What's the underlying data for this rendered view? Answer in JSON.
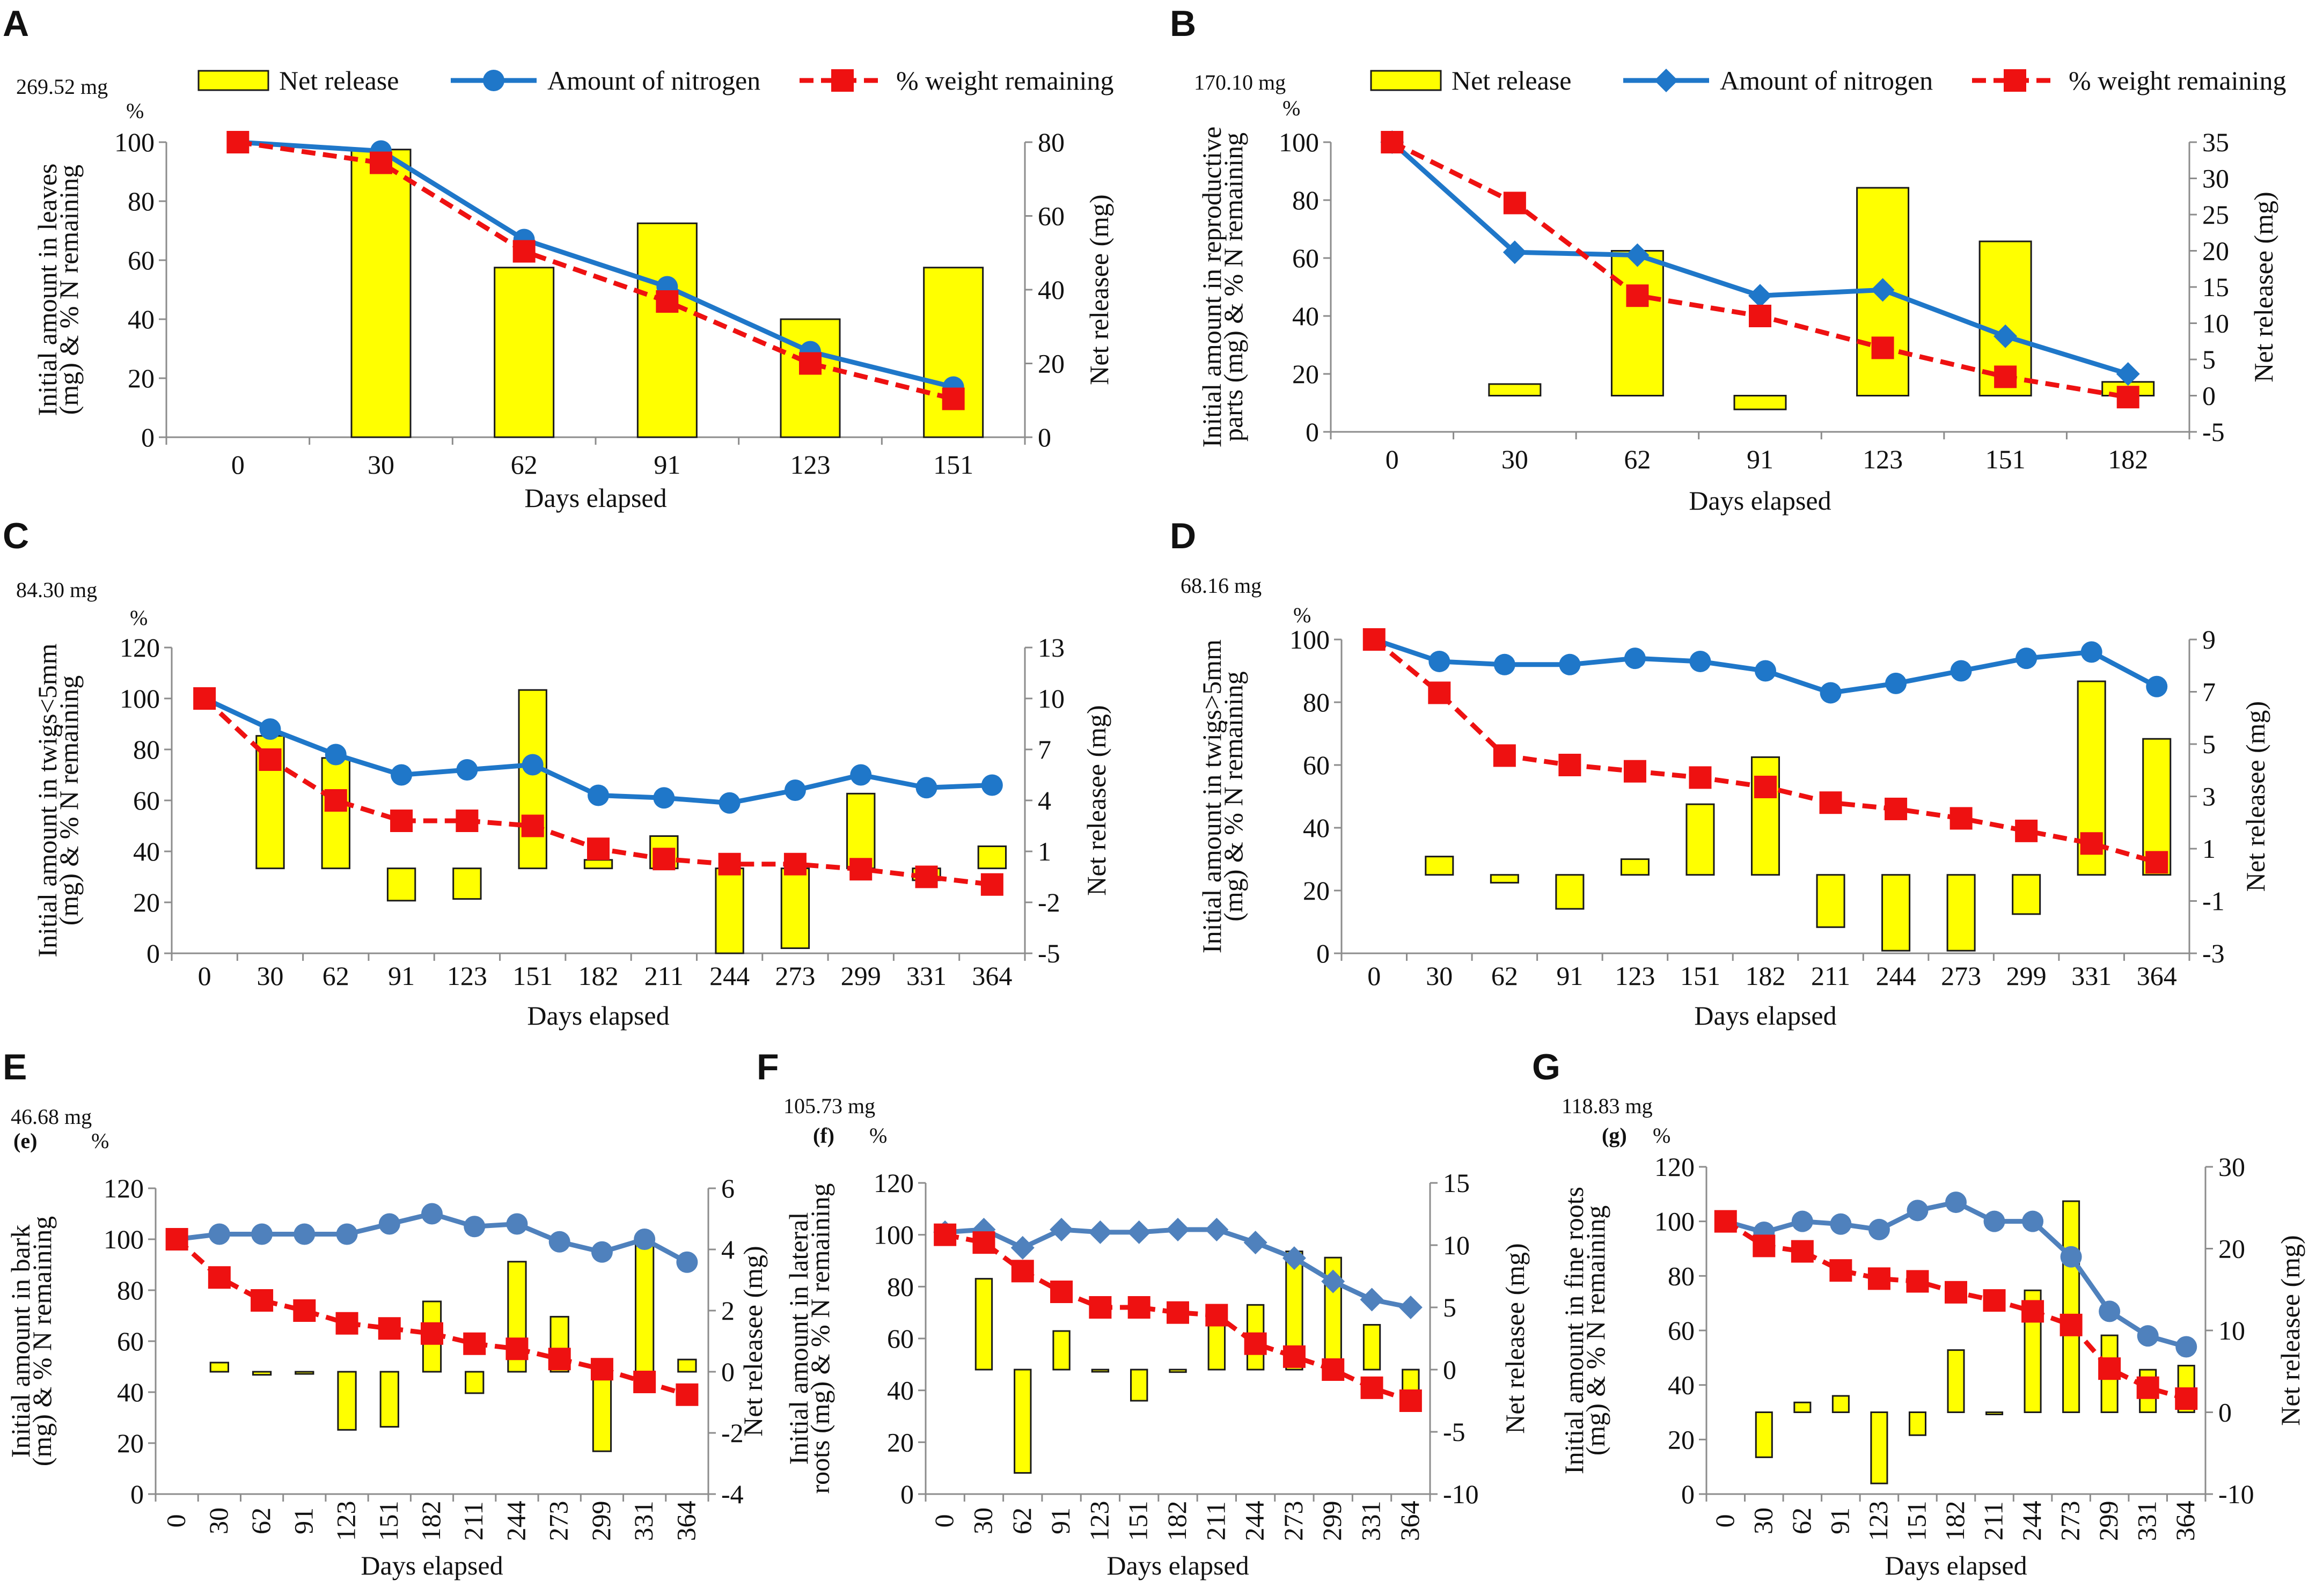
{
  "colors": {
    "bar_fill": "#ffff00",
    "bar_stroke": "#1a1a1a",
    "nitrogen_line": "#1f77c9",
    "nitrogen_line_light": "#4f81bd",
    "weight_line": "#ee1111",
    "axis": "#8c8c8c"
  },
  "chart_data": [
    {
      "panel": "A",
      "type": "bar+line",
      "initial_amount": "269.52 mg",
      "percent_mark": "%",
      "legend": [
        "Net release",
        "Amount of nitrogen",
        "% weight remaining"
      ],
      "nitrogen_marker": "circle",
      "categories": [
        "0",
        "30",
        "62",
        "91",
        "123",
        "151"
      ],
      "xlabel": "Days elapsed",
      "ylabel_left": [
        "Initial amount in leaves",
        "(mg) & % N remaining"
      ],
      "ylabel_right": "Net releasee (mg)",
      "yticks_left": [
        "0",
        "20",
        "40",
        "60",
        "80",
        "100"
      ],
      "ylim_left": [
        0,
        100
      ],
      "yticks_right": [
        "0",
        "20",
        "40",
        "60",
        "80"
      ],
      "ylim_right": [
        0,
        80
      ],
      "series": [
        {
          "name": "Net release",
          "type": "bar",
          "axis": "right",
          "bars": [
            null,
            [
              0,
              78
            ],
            [
              0,
              46
            ],
            [
              0,
              58
            ],
            [
              0,
              32
            ],
            [
              0,
              46
            ]
          ]
        },
        {
          "name": "Amount of nitrogen",
          "type": "line",
          "axis": "left",
          "values": [
            100,
            97,
            67,
            51,
            29,
            17
          ]
        },
        {
          "name": "% weight remaining",
          "type": "line",
          "axis": "left",
          "values": [
            100,
            93,
            63,
            46,
            25,
            13
          ]
        }
      ]
    },
    {
      "panel": "B",
      "type": "bar+line",
      "initial_amount": "170.10 mg",
      "percent_mark": "%",
      "legend": [
        "Net release",
        "Amount of nitrogen",
        "% weight remaining"
      ],
      "nitrogen_marker": "diamond",
      "categories": [
        "0",
        "30",
        "62",
        "91",
        "123",
        "151",
        "182"
      ],
      "xlabel": "Days elapsed",
      "ylabel_left": [
        "Initial amount in reproductive",
        "parts (mg) & % N remaining"
      ],
      "ylabel_right": "Net releasee (mg)",
      "yticks_left": [
        "0",
        "20",
        "40",
        "60",
        "80",
        "100"
      ],
      "ylim_left": [
        0,
        100
      ],
      "yticks_right": [
        "-5",
        "0",
        "5",
        "10",
        "15",
        "20",
        "25",
        "30",
        "35"
      ],
      "ylim_right": [
        -5,
        35
      ],
      "series": [
        {
          "name": "Net release",
          "type": "bar",
          "axis": "right",
          "bars": [
            null,
            [
              0,
              1.6
            ],
            [
              0,
              20
            ],
            [
              -1.9,
              0
            ],
            [
              0,
              28.7
            ],
            [
              0,
              21.3
            ],
            [
              0,
              1.9
            ]
          ]
        },
        {
          "name": "Amount of nitrogen",
          "type": "line",
          "axis": "left",
          "values": [
            100,
            62,
            61,
            47,
            49,
            33,
            20
          ]
        },
        {
          "name": "% weight remaining",
          "type": "line",
          "axis": "left",
          "values": [
            100,
            79,
            47,
            40,
            29,
            19,
            12
          ]
        }
      ]
    },
    {
      "panel": "C",
      "type": "bar+line",
      "initial_amount": "84.30 mg",
      "percent_mark": "%",
      "nitrogen_marker": "circle",
      "categories": [
        "0",
        "30",
        "62",
        "91",
        "123",
        "151",
        "182",
        "211",
        "244",
        "273",
        "299",
        "331",
        "364"
      ],
      "xlabel": "Days elapsed",
      "ylabel_left": [
        "Initial amount in twigs<5mm",
        "(mg) & % N remaining"
      ],
      "ylabel_right": "Net releasee (mg)",
      "yticks_left": [
        "0",
        "20",
        "40",
        "60",
        "80",
        "100",
        "120"
      ],
      "ylim_left": [
        0,
        120
      ],
      "yticks_right": [
        "-5",
        "-2",
        "1",
        "4",
        "7",
        "10",
        "13"
      ],
      "ylim_right": [
        -5,
        13
      ],
      "series": [
        {
          "name": "Net release",
          "type": "bar",
          "axis": "right",
          "bars": [
            null,
            [
              0,
              7.8
            ],
            [
              0,
              6.5
            ],
            [
              -1.9,
              0
            ],
            [
              -1.8,
              0
            ],
            [
              0,
              10.5
            ],
            [
              0,
              0.5
            ],
            [
              0,
              1.9
            ],
            [
              -5,
              0
            ],
            [
              -4.7,
              0
            ],
            [
              0,
              4.4
            ],
            [
              -0.7,
              0
            ],
            [
              0,
              1.3
            ]
          ]
        },
        {
          "name": "Amount of nitrogen",
          "type": "line",
          "axis": "left",
          "values": [
            100,
            88,
            78,
            70,
            72,
            74,
            62,
            61,
            59,
            64,
            70,
            65,
            66
          ]
        },
        {
          "name": "% weight remaining",
          "type": "line",
          "axis": "left",
          "values": [
            100,
            76,
            60,
            52,
            52,
            50,
            41,
            37,
            35,
            35,
            33,
            30,
            27
          ]
        }
      ]
    },
    {
      "panel": "D",
      "type": "bar+line",
      "initial_amount": "68.16 mg",
      "percent_mark": "%",
      "nitrogen_marker": "circle",
      "categories": [
        "0",
        "30",
        "62",
        "91",
        "123",
        "151",
        "182",
        "211",
        "244",
        "273",
        "299",
        "331",
        "364"
      ],
      "xlabel": "Days elapsed",
      "ylabel_left": [
        "Initial amount in twigs>5mm",
        "(mg) & % N remaining"
      ],
      "ylabel_right": "Net releasee (mg)",
      "yticks_left": [
        "0",
        "20",
        "40",
        "60",
        "80",
        "100"
      ],
      "ylim_left": [
        0,
        100
      ],
      "yticks_right": [
        "-3",
        "-1",
        "1",
        "3",
        "5",
        "7",
        "9"
      ],
      "ylim_right": [
        -3,
        9
      ],
      "series": [
        {
          "name": "Net release",
          "type": "bar",
          "axis": "right",
          "bars": [
            null,
            [
              0,
              0.7
            ],
            [
              -0.3,
              0
            ],
            [
              -1.3,
              0
            ],
            [
              0,
              0.6
            ],
            [
              0,
              2.7
            ],
            [
              0,
              4.5
            ],
            [
              -2.0,
              0
            ],
            [
              -2.9,
              0
            ],
            [
              -2.9,
              0
            ],
            [
              -1.5,
              0
            ],
            [
              0,
              7.4
            ],
            [
              0,
              5.2
            ]
          ]
        },
        {
          "name": "Amount of nitrogen",
          "type": "line",
          "axis": "left",
          "values": [
            100,
            93,
            92,
            92,
            94,
            93,
            90,
            83,
            86,
            90,
            94,
            96,
            85
          ]
        },
        {
          "name": "% weight remaining",
          "type": "line",
          "axis": "left",
          "values": [
            100,
            83,
            63,
            60,
            58,
            56,
            53,
            48,
            46,
            43,
            39,
            35,
            29
          ]
        }
      ]
    },
    {
      "panel": "E",
      "type": "bar+line",
      "initial_amount": "46.68 mg",
      "sub_label": "(e)",
      "percent_mark": "%",
      "nitrogen_marker": "circle",
      "rotated_ticks": true,
      "categories": [
        "0",
        "30",
        "62",
        "91",
        "123",
        "151",
        "182",
        "211",
        "244",
        "273",
        "299",
        "331",
        "364"
      ],
      "xlabel": "Days elapsed",
      "ylabel_left": [
        "Initial amount in bark",
        "(mg) & % N remaining"
      ],
      "ylabel_right": "Net releasee (mg)",
      "yticks_left": [
        "0",
        "20",
        "40",
        "60",
        "80",
        "100",
        "120"
      ],
      "ylim_left": [
        0,
        120
      ],
      "yticks_right": [
        "-4",
        "-2",
        "0",
        "2",
        "4",
        "6"
      ],
      "ylim_right": [
        -4,
        6
      ],
      "series": [
        {
          "name": "Net release",
          "type": "bar",
          "axis": "right",
          "bars": [
            null,
            [
              0,
              0.3
            ],
            [
              -0.1,
              0
            ],
            [
              0,
              0
            ],
            [
              -1.9,
              0
            ],
            [
              -1.8,
              0
            ],
            [
              0,
              2.3
            ],
            [
              -0.7,
              0
            ],
            [
              0,
              3.6
            ],
            [
              0,
              1.8
            ],
            [
              -2.6,
              0
            ],
            [
              0,
              4.4
            ],
            [
              0,
              0.4
            ]
          ]
        },
        {
          "name": "Amount of nitrogen",
          "type": "line",
          "axis": "left",
          "values": [
            100,
            102,
            102,
            102,
            102,
            106,
            110,
            105,
            106,
            99,
            95,
            100,
            91
          ]
        },
        {
          "name": "% weight remaining",
          "type": "line",
          "axis": "left",
          "values": [
            100,
            85,
            76,
            72,
            67,
            65,
            63,
            59,
            57,
            53,
            49,
            44,
            39
          ]
        }
      ]
    },
    {
      "panel": "F",
      "type": "bar+line",
      "initial_amount": "105.73 mg",
      "sub_label": "(f)",
      "percent_mark": "%",
      "nitrogen_marker": "diamond",
      "rotated_ticks": true,
      "categories": [
        "0",
        "30",
        "62",
        "91",
        "123",
        "151",
        "182",
        "211",
        "244",
        "273",
        "299",
        "331",
        "364"
      ],
      "xlabel": "Days elapsed",
      "ylabel_left": [
        "Initial amount in lateral",
        "roots (mg) & % N remaining"
      ],
      "ylabel_right": "Net releasee (mg)",
      "yticks_left": [
        "0",
        "20",
        "40",
        "60",
        "80",
        "100",
        "120"
      ],
      "ylim_left": [
        0,
        120
      ],
      "yticks_right": [
        "-10",
        "-5",
        "0",
        "5",
        "10",
        "15"
      ],
      "ylim_right": [
        -10,
        15
      ],
      "series": [
        {
          "name": "Net release",
          "type": "bar",
          "axis": "right",
          "bars": [
            null,
            [
              0,
              7.3
            ],
            [
              -8.3,
              0
            ],
            [
              0,
              3.1
            ],
            [
              0,
              0
            ],
            [
              -2.5,
              0
            ],
            [
              -0.2,
              0
            ],
            [
              0,
              4.1
            ],
            [
              0,
              5.2
            ],
            [
              0,
              9.5
            ],
            [
              0,
              9.0
            ],
            [
              0,
              3.6
            ],
            [
              -1.8,
              0
            ]
          ]
        },
        {
          "name": "Amount of nitrogen",
          "type": "line",
          "axis": "left",
          "values": [
            101,
            102,
            95,
            102,
            101,
            101,
            102,
            102,
            97,
            91,
            82,
            75,
            72
          ]
        },
        {
          "name": "% weight remaining",
          "type": "line",
          "axis": "left",
          "values": [
            100,
            97,
            86,
            78,
            72,
            72,
            70,
            69,
            58,
            53,
            48,
            41,
            36
          ]
        }
      ]
    },
    {
      "panel": "G",
      "type": "bar+line",
      "initial_amount": "118.83 mg",
      "sub_label": "(g)",
      "percent_mark": "%",
      "nitrogen_marker": "circle",
      "rotated_ticks": true,
      "categories": [
        "0",
        "30",
        "62",
        "91",
        "123",
        "151",
        "182",
        "211",
        "244",
        "273",
        "299",
        "331",
        "364"
      ],
      "xlabel": "Days elapsed",
      "ylabel_left": [
        "Initial amount in fine roots",
        "(mg) & % N remaining"
      ],
      "ylabel_right": "Net releasee (mg)",
      "yticks_left": [
        "0",
        "20",
        "40",
        "60",
        "80",
        "100",
        "120"
      ],
      "ylim_left": [
        0,
        120
      ],
      "yticks_right": [
        "-10",
        "0",
        "10",
        "20",
        "30"
      ],
      "ylim_right": [
        -10,
        30
      ],
      "series": [
        {
          "name": "Net release",
          "type": "bar",
          "axis": "right",
          "bars": [
            null,
            [
              -5.5,
              0
            ],
            [
              0,
              1.2
            ],
            [
              0,
              2.0
            ],
            [
              -8.7,
              0
            ],
            [
              -2.8,
              0
            ],
            [
              0,
              7.6
            ],
            [
              0,
              0
            ],
            [
              0,
              14.9
            ],
            [
              0,
              25.8
            ],
            [
              0,
              9.4
            ],
            [
              0,
              5.2
            ],
            [
              0,
              5.7
            ]
          ]
        },
        {
          "name": "Amount of nitrogen",
          "type": "line",
          "axis": "left",
          "values": [
            100,
            96,
            100,
            99,
            97,
            104,
            107,
            100,
            100,
            87,
            67,
            58,
            54
          ]
        },
        {
          "name": "% weight remaining",
          "type": "line",
          "axis": "left",
          "values": [
            100,
            91,
            89,
            82,
            79,
            78,
            74,
            71,
            67,
            62,
            46,
            39,
            35
          ]
        }
      ]
    }
  ]
}
